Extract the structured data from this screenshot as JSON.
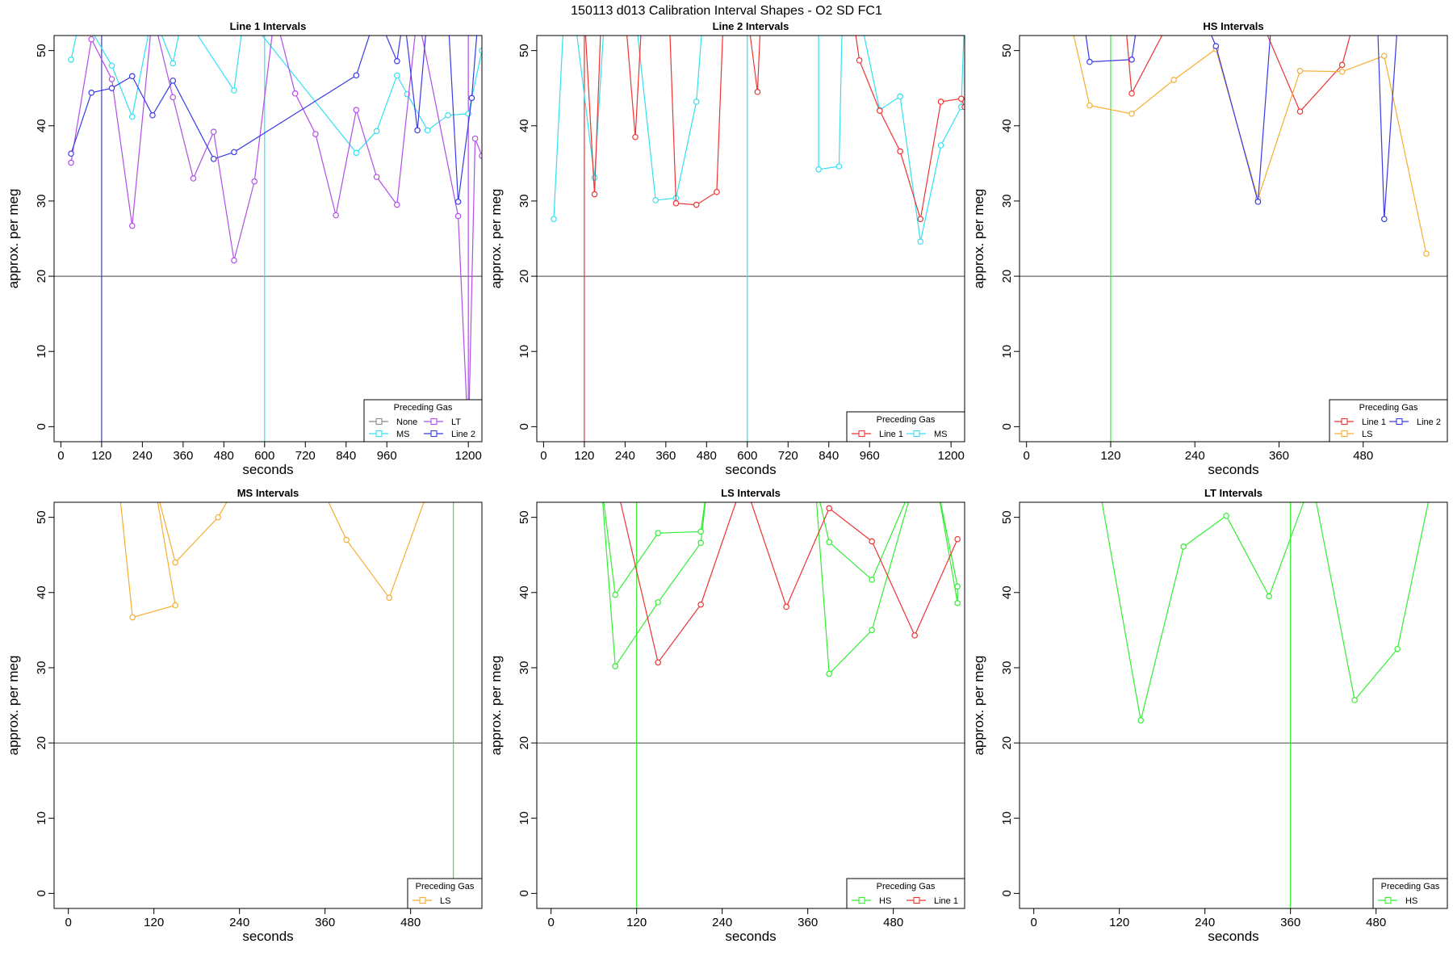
{
  "figure_title": "150113   d013   Calibration Interval Shapes - O2 SD FC1",
  "legend_title": "Preceding Gas",
  "xlabel": "seconds",
  "ylabel": "approx. per meg",
  "colors": {
    "None": "#888888",
    "MS": "#33e0f0",
    "LT": "#b14fe6",
    "Line 2": "#3a3ae6",
    "Line 1": "#ee3333",
    "LS": "#f5ae30",
    "HS": "#33ee33",
    "zero_line": "#444444",
    "axis": "#000000"
  },
  "chart_data": [
    {
      "type": "line",
      "title": "Line 1 Intervals",
      "xlabel": "seconds",
      "ylabel": "approx. per meg",
      "xlim": [
        -20,
        1240
      ],
      "ylim": [
        -2,
        52
      ],
      "xticks": [
        0,
        120,
        240,
        360,
        480,
        600,
        720,
        840,
        960,
        1200
      ],
      "yticks": [
        0,
        10,
        20,
        30,
        40,
        50
      ],
      "hline": 20,
      "vlines": [
        {
          "x": 120,
          "series": "Line 2"
        },
        {
          "x": 600,
          "series": "MS"
        },
        {
          "x": 1200,
          "series": "LT"
        }
      ],
      "legend": {
        "position": "bottom-right",
        "columns": 2,
        "entries": [
          "None",
          "LT",
          "MS",
          "Line 2"
        ]
      },
      "series": [
        {
          "name": "MS",
          "points": [
            [
              30,
              48.8
            ],
            [
              60,
              55
            ],
            [
              150,
              48
            ],
            [
              210,
              41.2
            ],
            [
              270,
              55
            ],
            [
              330,
              48.3
            ],
            [
              360,
              55
            ],
            [
              510,
              44.7
            ],
            [
              540,
              55
            ],
            [
              870,
              36.4
            ],
            [
              930,
              39.3
            ],
            [
              990,
              46.7
            ],
            [
              1020,
              44.2
            ],
            [
              1080,
              39.4
            ],
            [
              1140,
              41.4
            ],
            [
              1200,
              41.6
            ],
            [
              1240,
              50
            ]
          ]
        },
        {
          "name": "LT",
          "points": [
            [
              30,
              35.1
            ],
            [
              90,
              51.5
            ],
            [
              150,
              46.2
            ],
            [
              210,
              26.7
            ],
            [
              270,
              55
            ],
            [
              330,
              43.8
            ],
            [
              390,
              33
            ],
            [
              450,
              39.2
            ],
            [
              510,
              22.1
            ],
            [
              570,
              32.6
            ],
            [
              630,
              55
            ],
            [
              690,
              44.3
            ],
            [
              750,
              38.9
            ],
            [
              810,
              28.1
            ],
            [
              870,
              42.1
            ],
            [
              930,
              33.2
            ],
            [
              990,
              29.5
            ],
            [
              1050,
              55
            ],
            [
              1170,
              28
            ],
            [
              1200,
              -2
            ],
            [
              1220,
              38.3
            ],
            [
              1240,
              36
            ]
          ]
        },
        {
          "name": "Line 2",
          "points": [
            [
              30,
              36.3
            ],
            [
              90,
              44.4
            ],
            [
              150,
              45
            ],
            [
              210,
              46.6
            ],
            [
              270,
              41.4
            ],
            [
              330,
              46
            ],
            [
              450,
              35.6
            ],
            [
              510,
              36.5
            ],
            [
              870,
              46.7
            ],
            [
              930,
              55
            ],
            [
              990,
              48.6
            ],
            [
              1010,
              55
            ],
            [
              1050,
              39.4
            ],
            [
              1080,
              55
            ],
            [
              1140,
              55
            ],
            [
              1170,
              29.9
            ],
            [
              1210,
              43.7
            ],
            [
              1230,
              55
            ]
          ]
        }
      ]
    },
    {
      "type": "line",
      "title": "Line 2 Intervals",
      "xlabel": "seconds",
      "ylabel": "approx. per meg",
      "xlim": [
        -20,
        1240
      ],
      "ylim": [
        -2,
        52
      ],
      "xticks": [
        0,
        120,
        240,
        360,
        480,
        600,
        720,
        840,
        960,
        1200
      ],
      "yticks": [
        0,
        10,
        20,
        30,
        40,
        50
      ],
      "hline": 20,
      "vlines": [
        {
          "x": 120,
          "series": "Line 1"
        },
        {
          "x": 600,
          "series": "MS"
        }
      ],
      "legend": {
        "position": "bottom-right",
        "columns": 2,
        "entries": [
          "Line 1",
          "MS"
        ]
      },
      "series": [
        {
          "name": "MS",
          "points": [
            [
              30,
              27.6
            ],
            [
              60,
              55
            ],
            [
              90,
              55
            ],
            [
              150,
              33.1
            ],
            [
              180,
              55
            ],
            [
              270,
              55
            ],
            [
              330,
              30.1
            ],
            [
              390,
              30.4
            ],
            [
              450,
              43.2
            ],
            [
              470,
              55
            ],
            [
              810,
              55
            ],
            [
              810,
              34.2
            ],
            [
              870,
              34.6
            ],
            [
              880,
              55
            ],
            [
              930,
              55
            ],
            [
              990,
              42.1
            ],
            [
              1050,
              43.9
            ],
            [
              1110,
              24.6
            ],
            [
              1170,
              37.4
            ],
            [
              1230,
              42.5
            ],
            [
              1240,
              55
            ]
          ]
        },
        {
          "name": "Line 1",
          "points": [
            [
              120,
              55
            ],
            [
              150,
              30.9
            ],
            [
              170,
              55
            ],
            [
              240,
              55
            ],
            [
              270,
              38.5
            ],
            [
              290,
              55
            ],
            [
              370,
              55
            ],
            [
              390,
              29.7
            ],
            [
              450,
              29.5
            ],
            [
              510,
              31.2
            ],
            [
              530,
              55
            ],
            [
              600,
              55
            ],
            [
              630,
              44.5
            ],
            [
              640,
              55
            ],
            [
              910,
              55
            ],
            [
              930,
              48.7
            ],
            [
              990,
              42
            ],
            [
              1050,
              36.6
            ],
            [
              1110,
              27.6
            ],
            [
              1170,
              43.2
            ],
            [
              1230,
              43.6
            ],
            [
              1240,
              42.5
            ]
          ]
        }
      ]
    },
    {
      "type": "line",
      "title": "HS Intervals",
      "xlabel": "seconds",
      "ylabel": "approx. per meg",
      "xlim": [
        -10,
        600
      ],
      "ylim": [
        -2,
        52
      ],
      "xticks": [
        0,
        120,
        240,
        360,
        480
      ],
      "yticks": [
        0,
        10,
        20,
        30,
        40,
        50
      ],
      "hline": 20,
      "vlines": [
        {
          "x": 120,
          "series": "HS"
        }
      ],
      "legend": {
        "position": "bottom-right",
        "columns": 2,
        "entries": [
          "Line 1",
          "Line 2",
          "LS"
        ]
      },
      "series": [
        {
          "name": "Line 1",
          "points": [
            [
              140,
              55
            ],
            [
              150,
              44.3
            ],
            [
              210,
              55
            ],
            [
              330,
              55
            ],
            [
              390,
              41.9
            ],
            [
              450,
              48.1
            ],
            [
              470,
              55
            ]
          ]
        },
        {
          "name": "LS",
          "points": [
            [
              60,
              55
            ],
            [
              90,
              42.7
            ],
            [
              150,
              41.6
            ],
            [
              210,
              46.1
            ],
            [
              270,
              50.2
            ],
            [
              330,
              30.3
            ],
            [
              390,
              47.3
            ],
            [
              450,
              47.2
            ],
            [
              510,
              49.3
            ],
            [
              570,
              23
            ]
          ]
        },
        {
          "name": "Line 2",
          "points": [
            [
              80,
              55
            ],
            [
              90,
              48.5
            ],
            [
              150,
              48.8
            ],
            [
              160,
              55
            ],
            [
              250,
              55
            ],
            [
              270,
              50.6
            ],
            [
              330,
              29.9
            ],
            [
              350,
              55
            ],
            [
              500,
              55
            ],
            [
              510,
              27.6
            ],
            [
              530,
              55
            ]
          ]
        }
      ]
    },
    {
      "type": "line",
      "title": "MS Intervals",
      "xlabel": "seconds",
      "ylabel": "approx. per meg",
      "xlim": [
        -20,
        580
      ],
      "ylim": [
        -2,
        52
      ],
      "xticks": [
        0,
        120,
        240,
        360,
        480
      ],
      "yticks": [
        0,
        10,
        20,
        30,
        40,
        50
      ],
      "hline": 20,
      "vlines": [
        {
          "x": 540,
          "series": "HS"
        }
      ],
      "legend": {
        "position": "bottom-right",
        "columns": 1,
        "entries": [
          "LS"
        ]
      },
      "series": [
        {
          "name": "LS",
          "points": [
            [
              70,
              55
            ],
            [
              90,
              36.7
            ],
            [
              150,
              38.3
            ],
            [
              120,
              55
            ],
            [
              150,
              44
            ],
            [
              210,
              50
            ],
            [
              240,
              55
            ],
            [
              350,
              55
            ],
            [
              390,
              47
            ],
            [
              450,
              39.3
            ],
            [
              510,
              55
            ]
          ]
        }
      ]
    },
    {
      "type": "line",
      "title": "LS Intervals",
      "xlabel": "seconds",
      "ylabel": "approx. per meg",
      "xlim": [
        -20,
        580
      ],
      "ylim": [
        -2,
        52
      ],
      "xticks": [
        0,
        120,
        240,
        360,
        480
      ],
      "yticks": [
        0,
        10,
        20,
        30,
        40,
        50
      ],
      "hline": 20,
      "vlines": [
        {
          "x": 120,
          "series": "HS"
        }
      ],
      "legend": {
        "position": "bottom-right",
        "columns": 2,
        "entries": [
          "HS",
          "Line 1"
        ]
      },
      "series": [
        {
          "name": "HS",
          "points": [
            [
              70,
              55
            ],
            [
              90,
              39.7
            ],
            [
              150,
              47.9
            ],
            [
              210,
              48.1
            ],
            [
              220,
              55
            ],
            [
              70,
              55
            ],
            [
              90,
              30.2
            ],
            [
              150,
              38.7
            ],
            [
              210,
              46.6
            ],
            [
              220,
              55
            ],
            [
              370,
              55
            ],
            [
              390,
              46.7
            ],
            [
              450,
              41.7
            ],
            [
              510,
              55
            ],
            [
              370,
              55
            ],
            [
              390,
              29.2
            ],
            [
              450,
              35
            ],
            [
              510,
              55
            ],
            [
              540,
              55
            ],
            [
              570,
              40.8
            ],
            [
              570,
              38.6
            ],
            [
              540,
              55
            ]
          ]
        },
        {
          "name": "Line 1",
          "points": [
            [
              90,
              55
            ],
            [
              150,
              30.7
            ],
            [
              210,
              38.4
            ],
            [
              270,
              55
            ],
            [
              330,
              38.1
            ],
            [
              390,
              51.2
            ],
            [
              450,
              46.8
            ],
            [
              510,
              34.3
            ],
            [
              570,
              47.1
            ]
          ]
        }
      ]
    },
    {
      "type": "line",
      "title": "LT Intervals",
      "xlabel": "seconds",
      "ylabel": "approx. per meg",
      "xlim": [
        -20,
        580
      ],
      "ylim": [
        -2,
        52
      ],
      "xticks": [
        0,
        120,
        240,
        360,
        480
      ],
      "yticks": [
        0,
        10,
        20,
        30,
        40,
        50
      ],
      "hline": 20,
      "vlines": [
        {
          "x": 360,
          "series": "HS"
        }
      ],
      "legend": {
        "position": "bottom-right",
        "columns": 1,
        "entries": [
          "HS"
        ]
      },
      "series": [
        {
          "name": "HS",
          "points": [
            [
              90,
              55
            ],
            [
              150,
              23
            ],
            [
              210,
              46.1
            ],
            [
              270,
              50.2
            ],
            [
              330,
              39.5
            ],
            [
              390,
              55
            ],
            [
              450,
              25.7
            ],
            [
              510,
              32.5
            ],
            [
              560,
              55
            ]
          ]
        }
      ]
    }
  ]
}
